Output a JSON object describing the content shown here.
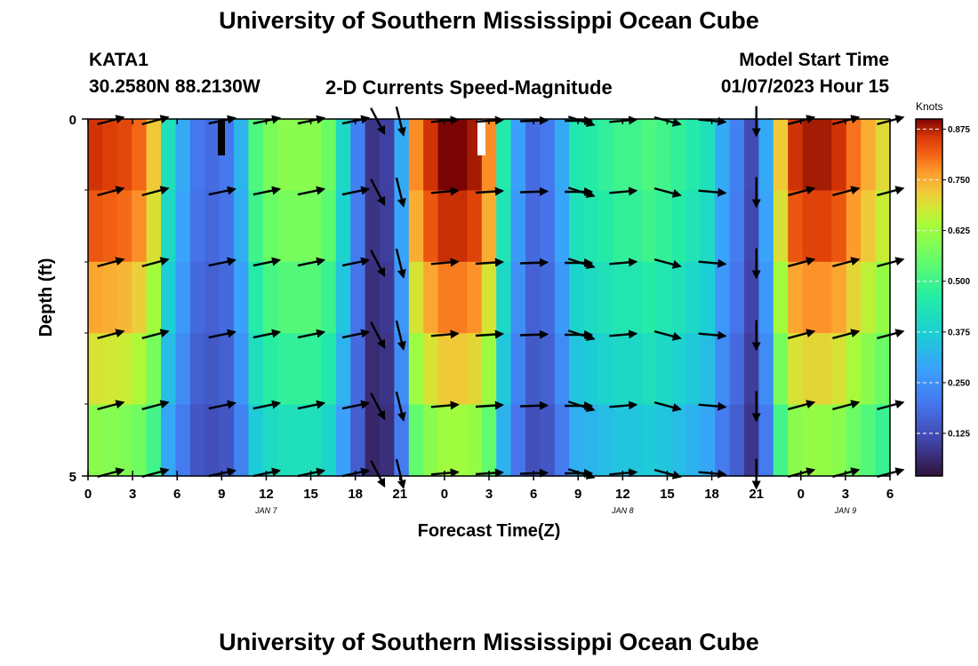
{
  "page": {
    "title_top": "University of Southern Mississippi Ocean Cube",
    "title_bottom": "University of Southern Mississippi Ocean Cube",
    "station": "KATA1",
    "coords": "30.2580N  88.2130W",
    "plot_title": "2-D Currents Speed-Magnitude",
    "model_label": "Model Start Time",
    "model_time": "01/07/2023 Hour 15"
  },
  "chart_data": {
    "type": "heatmap",
    "title": "2-D Currents Speed-Magnitude",
    "xlabel": "Forecast Time(Z)",
    "ylabel": "Depth (ft)",
    "x_tick_labels": [
      "0",
      "3",
      "6",
      "9",
      "12",
      "15",
      "18",
      "21",
      "0",
      "3",
      "6",
      "9",
      "12",
      "15",
      "18",
      "21",
      "0",
      "3",
      "6"
    ],
    "x_range_hours": [
      0,
      54
    ],
    "date_labels": [
      {
        "label": "JAN 7",
        "hour": 12
      },
      {
        "label": "JAN 8",
        "hour": 36
      },
      {
        "label": "JAN 9",
        "hour": 51
      }
    ],
    "y_tick_labels": [
      "0",
      "5"
    ],
    "y_range_ft": [
      0,
      5
    ],
    "colorbar": {
      "title": "Knots",
      "ticks": [
        "0.875",
        "0.750",
        "0.625",
        "0.500",
        "0.375",
        "0.250",
        "0.125"
      ],
      "range": [
        0.02,
        0.9
      ]
    },
    "depth_rows": 5,
    "speed_profile_knots": [
      0.86,
      0.85,
      0.84,
      0.81,
      0.72,
      0.42,
      0.3,
      0.2,
      0.18,
      0.2,
      0.32,
      0.52,
      0.58,
      0.6,
      0.6,
      0.6,
      0.56,
      0.4,
      0.22,
      0.08,
      0.1,
      0.3,
      0.78,
      0.86,
      0.9,
      0.9,
      0.88,
      0.78,
      0.45,
      0.28,
      0.18,
      0.2,
      0.3,
      0.44,
      0.46,
      0.48,
      0.5,
      0.5,
      0.52,
      0.5,
      0.48,
      0.45,
      0.42,
      0.3,
      0.22,
      0.12,
      0.3,
      0.72,
      0.86,
      0.88,
      0.88,
      0.86,
      0.8,
      0.75,
      0.7
    ],
    "depth_factors": [
      1.0,
      0.96,
      0.88,
      0.8,
      0.7
    ],
    "vector_hours": [
      1.5,
      4.5,
      9,
      12,
      15,
      18,
      19.5,
      21,
      24,
      27,
      30,
      33,
      33.2,
      36,
      39,
      42,
      45,
      48,
      51,
      54
    ],
    "vector_directions_deg": [
      15,
      15,
      12,
      12,
      12,
      12,
      -60,
      -75,
      5,
      4,
      2,
      0,
      -18,
      5,
      -15,
      -5,
      -90,
      15,
      15,
      15
    ]
  }
}
